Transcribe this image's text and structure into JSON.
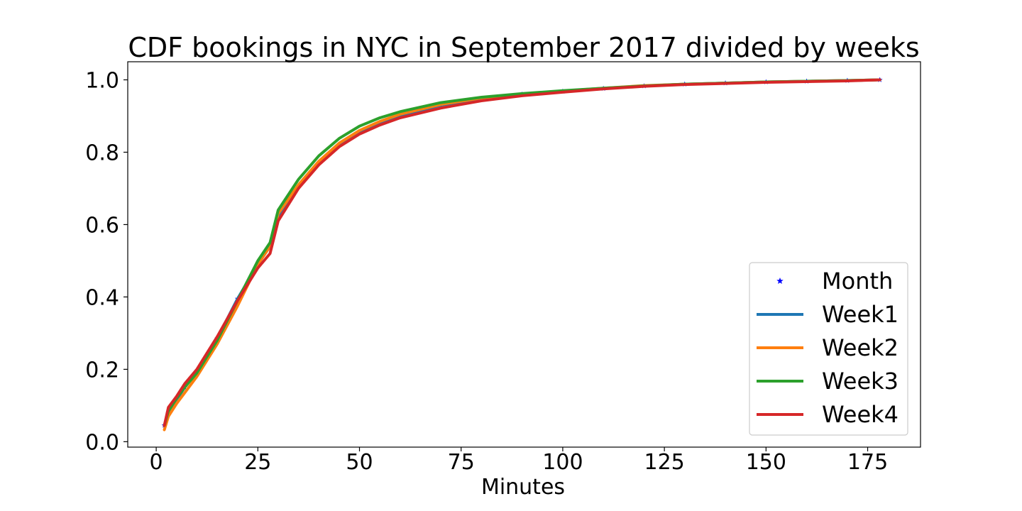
{
  "chart_data": {
    "type": "line",
    "title": "CDF bookings in NYC in September 2017 divided by weeks",
    "xlabel": "Minutes",
    "ylabel": "",
    "xlim": [
      -7,
      188
    ],
    "ylim": [
      -0.015,
      1.05
    ],
    "xticks": [
      0,
      25,
      50,
      75,
      100,
      125,
      150,
      175
    ],
    "yticks": [
      0.0,
      0.2,
      0.4,
      0.6,
      0.8,
      1.0
    ],
    "xtick_labels": [
      "0",
      "25",
      "50",
      "75",
      "100",
      "125",
      "150",
      "175"
    ],
    "ytick_labels": [
      "0.0",
      "0.2",
      "0.4",
      "0.6",
      "0.8",
      "1.0"
    ],
    "grid": false,
    "legend_position": "lower-right",
    "series": [
      {
        "name": "Month",
        "style": "marker",
        "marker": "star",
        "color": "#0000ff",
        "x": [
          2,
          3,
          5,
          7,
          10,
          15,
          20,
          25,
          28,
          30,
          35,
          40,
          45,
          50,
          55,
          60,
          70,
          80,
          90,
          100,
          110,
          120,
          130,
          140,
          150,
          160,
          170,
          178
        ],
        "y": [
          0.045,
          0.08,
          0.115,
          0.15,
          0.195,
          0.285,
          0.395,
          0.49,
          0.54,
          0.625,
          0.705,
          0.77,
          0.82,
          0.855,
          0.88,
          0.9,
          0.93,
          0.948,
          0.96,
          0.968,
          0.976,
          0.983,
          0.988,
          0.991,
          0.994,
          0.996,
          0.998,
          1.0
        ]
      },
      {
        "name": "Week1",
        "style": "line",
        "color": "#1f77b4",
        "x": [
          2,
          3,
          5,
          7,
          10,
          15,
          20,
          25,
          28,
          30,
          35,
          40,
          45,
          50,
          55,
          60,
          70,
          80,
          90,
          100,
          110,
          120,
          130,
          140,
          150,
          160,
          170,
          178
        ],
        "y": [
          0.045,
          0.08,
          0.115,
          0.15,
          0.195,
          0.285,
          0.395,
          0.49,
          0.54,
          0.625,
          0.705,
          0.77,
          0.82,
          0.855,
          0.88,
          0.9,
          0.93,
          0.948,
          0.96,
          0.968,
          0.976,
          0.983,
          0.988,
          0.991,
          0.994,
          0.996,
          0.998,
          1.0
        ]
      },
      {
        "name": "Week2",
        "style": "line",
        "color": "#ff7f0e",
        "x": [
          2,
          3,
          5,
          7,
          10,
          15,
          20,
          25,
          28,
          30,
          35,
          40,
          45,
          50,
          55,
          60,
          70,
          80,
          90,
          100,
          110,
          120,
          130,
          140,
          150,
          160,
          170,
          178
        ],
        "y": [
          0.033,
          0.07,
          0.105,
          0.135,
          0.18,
          0.27,
          0.375,
          0.49,
          0.54,
          0.63,
          0.71,
          0.775,
          0.825,
          0.86,
          0.885,
          0.905,
          0.932,
          0.95,
          0.961,
          0.969,
          0.977,
          0.984,
          0.988,
          0.991,
          0.994,
          0.996,
          0.998,
          1.0
        ]
      },
      {
        "name": "Week3",
        "style": "line",
        "color": "#2ca02c",
        "x": [
          2,
          3,
          5,
          7,
          10,
          15,
          20,
          25,
          28,
          30,
          35,
          40,
          45,
          50,
          55,
          60,
          70,
          80,
          90,
          100,
          110,
          120,
          130,
          140,
          150,
          160,
          170,
          178
        ],
        "y": [
          0.045,
          0.085,
          0.12,
          0.15,
          0.19,
          0.28,
          0.39,
          0.5,
          0.55,
          0.64,
          0.725,
          0.79,
          0.838,
          0.872,
          0.895,
          0.912,
          0.937,
          0.952,
          0.962,
          0.97,
          0.977,
          0.983,
          0.988,
          0.991,
          0.994,
          0.996,
          0.998,
          1.0
        ]
      },
      {
        "name": "Week4",
        "style": "line",
        "color": "#d62728",
        "x": [
          2,
          3,
          5,
          7,
          10,
          15,
          20,
          25,
          28,
          30,
          35,
          40,
          45,
          50,
          55,
          60,
          70,
          80,
          90,
          100,
          110,
          120,
          130,
          140,
          150,
          160,
          170,
          178
        ],
        "y": [
          0.045,
          0.095,
          0.125,
          0.16,
          0.2,
          0.29,
          0.39,
          0.48,
          0.52,
          0.61,
          0.7,
          0.765,
          0.815,
          0.85,
          0.875,
          0.895,
          0.922,
          0.942,
          0.956,
          0.966,
          0.975,
          0.982,
          0.987,
          0.99,
          0.993,
          0.995,
          0.997,
          1.0
        ]
      }
    ]
  }
}
